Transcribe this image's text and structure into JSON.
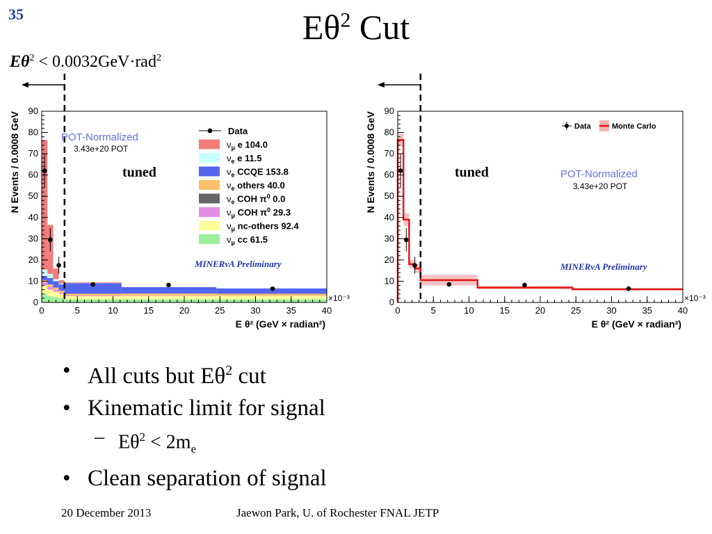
{
  "slide": {
    "number": "35",
    "title_main": "Eθ",
    "title_sup": "2",
    "title_rest": " Cut",
    "formula": {
      "lhs": "Eθ",
      "sup1": "2",
      "op": " < 0.0032GeV·rad",
      "sup2": "2"
    },
    "bullets": [
      {
        "text": "All cuts but Eθ",
        "sup": "2",
        "tail": " cut"
      },
      {
        "text": "Kinematic limit for signal"
      },
      {
        "text": "Clean separation of signal"
      }
    ],
    "sub_bullet": {
      "lhs": "Eθ",
      "sup": "2",
      "mid": " < 2m",
      "sub": "e"
    },
    "footer_date": "20 December 2013",
    "footer_author": "Jaewon Park, U. of Rochester  FNAL JETP"
  },
  "chart_data": [
    {
      "type": "bar",
      "stacked": true,
      "xlabel": "E θ² (GeV × radian²)",
      "ylabel": "N Events / 0.0008 GeV",
      "x_multiplier": "×10⁻³",
      "xlim": [
        0,
        40
      ],
      "ylim": [
        0,
        90
      ],
      "xticks": [
        0,
        5,
        10,
        15,
        20,
        25,
        30,
        35,
        40
      ],
      "yticks": [
        0,
        10,
        20,
        30,
        40,
        50,
        60,
        70,
        80,
        90
      ],
      "cut_x": 3.2,
      "annotations": {
        "pot": "POT-Normalized",
        "pot_value": "3.43e+20 POT",
        "tuned": "tuned",
        "preliminary": "MINERvA Preliminary"
      },
      "bin_edges": [
        0,
        0.8,
        1.6,
        2.4,
        3.2,
        11.2,
        24.5,
        40
      ],
      "series": [
        {
          "name": "cc",
          "label_sym": "ν",
          "label_sub": "μ",
          "label_text": " cc",
          "value": "61.5",
          "color": "#9cf09c",
          "values": [
            4,
            3,
            2.5,
            2,
            1.5,
            1.5,
            1.5
          ]
        },
        {
          "name": "nc-others",
          "label_sym": "ν",
          "label_sub": "μ",
          "label_text": " nc-others",
          "value": "92.4",
          "color": "#ffff99",
          "values": [
            4,
            3,
            2.5,
            2,
            1.5,
            1.6,
            1.6
          ]
        },
        {
          "name": "COH π0 (νμ)",
          "label_sym": "ν",
          "label_sub": "μ",
          "label_text": " COH π",
          "label_sup": "0",
          "value": "29.3",
          "color": "#e38ee3",
          "values": [
            1.5,
            1.5,
            1,
            0.5,
            0.3,
            0.2,
            0.1
          ]
        },
        {
          "name": "COH π0 (νe)",
          "label_sym": "ν",
          "label_sub": "e",
          "label_text": " COH π",
          "label_sup": "0",
          "value": "0.0",
          "color": "#666666",
          "values": [
            0,
            0,
            0,
            0,
            0,
            0,
            0
          ]
        },
        {
          "name": "others",
          "label_sym": "ν",
          "label_sub": "e",
          "label_text": " others",
          "value": "40.0",
          "color": "#ffbf66",
          "values": [
            1,
            1,
            1,
            1,
            0.8,
            0.9,
            0.9
          ]
        },
        {
          "name": "CCQE",
          "label_sym": "ν",
          "label_sub": "e",
          "label_text": " CCQE",
          "value": "153.8",
          "color": "#5566ee",
          "values": [
            2,
            3,
            3,
            3,
            5,
            3,
            2.5
          ]
        },
        {
          "name": "νe e",
          "label_sym": "ν",
          "label_sub": "e",
          "label_text": " e",
          "value": "11.5",
          "color": "#c8ffff",
          "values": [
            3,
            2,
            1,
            0.5,
            0.1,
            0,
            0
          ]
        },
        {
          "name": "νμ e",
          "label_sym": "ν",
          "label_sub": "μ",
          "label_text": " e",
          "value": "104.0",
          "color": "#f27b7b",
          "values": [
            61,
            23,
            5,
            1.5,
            0.3,
            0,
            0
          ]
        }
      ],
      "data_points": [
        {
          "x": 0.4,
          "y": 62,
          "err": 8
        },
        {
          "x": 1.2,
          "y": 29.5,
          "err": 5.5
        },
        {
          "x": 2.4,
          "y": 17.5,
          "err": 4
        },
        {
          "x": 7.2,
          "y": 8.5,
          "err": 0
        },
        {
          "x": 17.8,
          "y": 8.2,
          "err": 0
        },
        {
          "x": 32.4,
          "y": 6.5,
          "err": 0
        }
      ],
      "legend": {
        "data_label": "Data",
        "position": "top-right"
      }
    },
    {
      "type": "line",
      "xlabel": "E θ² (GeV × radian²)",
      "ylabel": "N Events / 0.0008 GeV",
      "x_multiplier": "×10⁻³",
      "xlim": [
        0,
        40
      ],
      "ylim": [
        0,
        90
      ],
      "xticks": [
        0,
        5,
        10,
        15,
        20,
        25,
        30,
        35,
        40
      ],
      "yticks": [
        0,
        10,
        20,
        30,
        40,
        50,
        60,
        70,
        80,
        90
      ],
      "cut_x": 3.2,
      "annotations": {
        "pot": "POT-Normalized",
        "pot_value": "3.43e+20 POT",
        "tuned": "tuned",
        "preliminary": "MINERvA Preliminary"
      },
      "bin_edges": [
        0,
        0.8,
        1.6,
        2.4,
        3.2,
        11.2,
        24.5,
        40
      ],
      "mc_values": [
        76.5,
        39,
        18,
        16,
        10.5,
        7,
        6.2
      ],
      "mc_band": [
        3,
        3,
        2,
        2,
        2.5,
        0.8,
        0.6
      ],
      "data_points": [
        {
          "x": 0.4,
          "y": 62,
          "err": 8
        },
        {
          "x": 1.2,
          "y": 29.5,
          "err": 5.5
        },
        {
          "x": 2.4,
          "y": 17.5,
          "err": 4
        },
        {
          "x": 7.2,
          "y": 8.5,
          "err": 0
        },
        {
          "x": 17.8,
          "y": 8.2,
          "err": 0
        },
        {
          "x": 32.4,
          "y": 6.5,
          "err": 0
        }
      ],
      "legend": {
        "data_label": "Data",
        "mc_label": "Monte Carlo",
        "position": "top-right"
      }
    }
  ]
}
